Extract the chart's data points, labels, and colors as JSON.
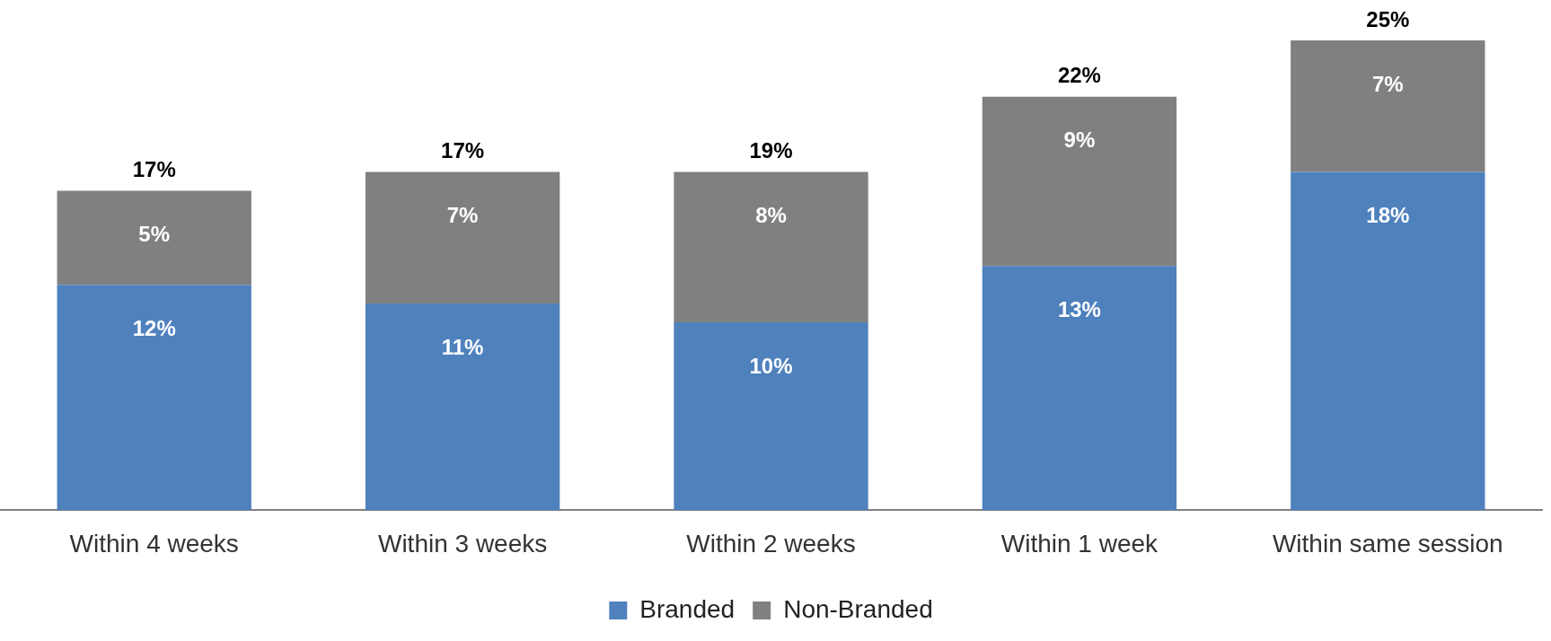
{
  "chart_data": {
    "type": "bar",
    "stacked": true,
    "legend": "bottom",
    "categories": [
      "Within 4 weeks",
      "Within 3 weeks",
      "Within 2 weeks",
      "Within 1 week",
      "Within same session"
    ],
    "series": [
      {
        "name": "Branded",
        "color": "#4f81bd",
        "values": [
          12,
          11,
          10,
          13,
          18
        ],
        "value_labels": [
          "12%",
          "11%",
          "10%",
          "13%",
          "18%"
        ]
      },
      {
        "name": "Non-Branded",
        "color": "#808080",
        "values": [
          5,
          7,
          8,
          9,
          7
        ],
        "value_labels": [
          "5%",
          "7%",
          "8%",
          "9%",
          "7%"
        ]
      }
    ],
    "totals": [
      "17%",
      "17%",
      "19%",
      "22%",
      "25%"
    ]
  }
}
